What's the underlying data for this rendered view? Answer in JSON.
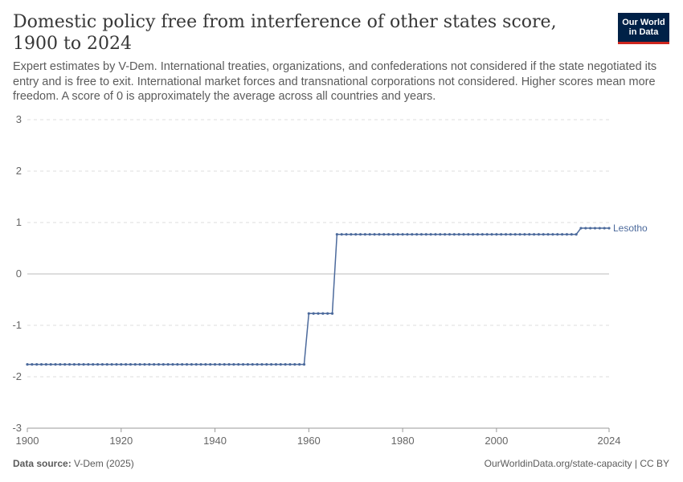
{
  "header": {
    "title": "Domestic policy free from interference of other states score, 1900 to 2024",
    "subtitle": "Expert estimates by V-Dem. International treaties, organizations, and confederations not considered if the state negotiated its entry and is free to exit. International market forces and transnational corporations not considered. Higher scores mean more freedom. A score of 0 is approximately the average across all countries and years.",
    "logo_line1": "Our World",
    "logo_line2": "in Data"
  },
  "footer": {
    "source_label": "Data source:",
    "source_value": "V-Dem (2025)",
    "link": "OurWorldinData.org/state-capacity | CC BY"
  },
  "colors": {
    "series": "#4c6a9c",
    "grid": "#dddddd",
    "zero_line": "#bbbbbb"
  },
  "chart_data": {
    "type": "line",
    "title": "Domestic policy free from interference of other states score, 1900 to 2024",
    "xlabel": "",
    "ylabel": "",
    "xlim": [
      1900,
      2024
    ],
    "ylim": [
      -3,
      3
    ],
    "x_ticks": [
      "1900",
      "1920",
      "1940",
      "1960",
      "1980",
      "2000",
      "2024"
    ],
    "x_tick_values": [
      1900,
      1920,
      1940,
      1960,
      1980,
      2000,
      2024
    ],
    "y_ticks": [
      "3",
      "2",
      "1",
      "0",
      "-1",
      "-2",
      "-3"
    ],
    "y_tick_values": [
      3,
      2,
      1,
      0,
      -1,
      -2,
      -3
    ],
    "grid": true,
    "series": [
      {
        "name": "Lesotho",
        "segments": [
          {
            "from": 1900,
            "to": 1959,
            "value": -1.76
          },
          {
            "from": 1960,
            "to": 1965,
            "value": -0.77
          },
          {
            "from": 1966,
            "to": 2017,
            "value": 0.77
          },
          {
            "from": 2018,
            "to": 2024,
            "value": 0.89
          }
        ]
      }
    ]
  }
}
